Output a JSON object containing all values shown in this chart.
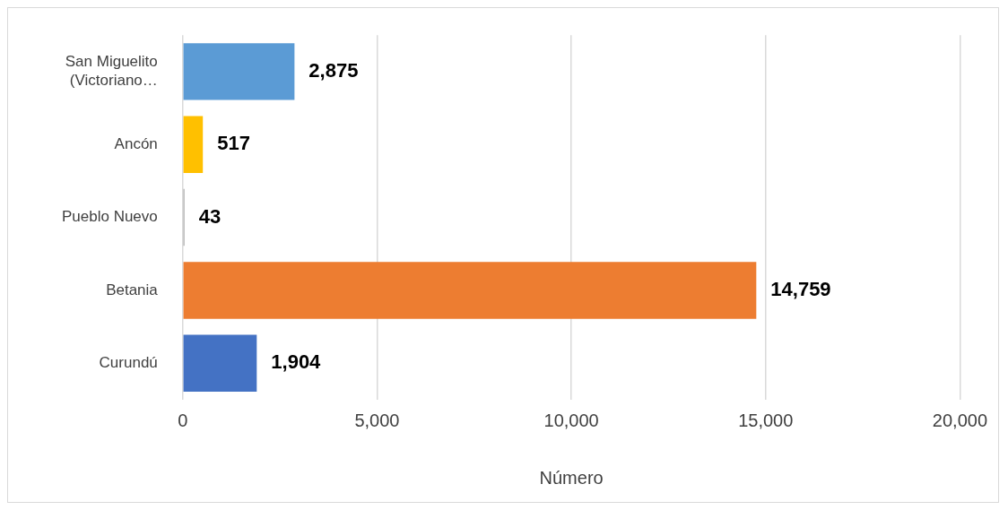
{
  "chart_data": {
    "type": "bar",
    "orientation": "horizontal",
    "xlabel": "Número",
    "categories": [
      "San Miguelito (Victoriano…",
      "Ancón",
      "Pueblo Nuevo",
      "Betania",
      "Curundú"
    ],
    "values": [
      2875,
      517,
      43,
      14759,
      1904
    ],
    "colors": [
      "#5b9bd5",
      "#ffc000",
      "#a5a5a5",
      "#ed7d31",
      "#4472c4"
    ],
    "xlim": [
      0,
      20000
    ],
    "xticks": [
      {
        "value": 0,
        "label": "0"
      },
      {
        "value": 5000,
        "label": "5,000"
      },
      {
        "value": 10000,
        "label": "10,000"
      },
      {
        "value": 15000,
        "label": "15,000"
      },
      {
        "value": 20000,
        "label": "20,000"
      }
    ],
    "value_labels": [
      "2,875",
      "517",
      "43",
      "14,759",
      "1,904"
    ],
    "grid": "x",
    "legend": false
  }
}
